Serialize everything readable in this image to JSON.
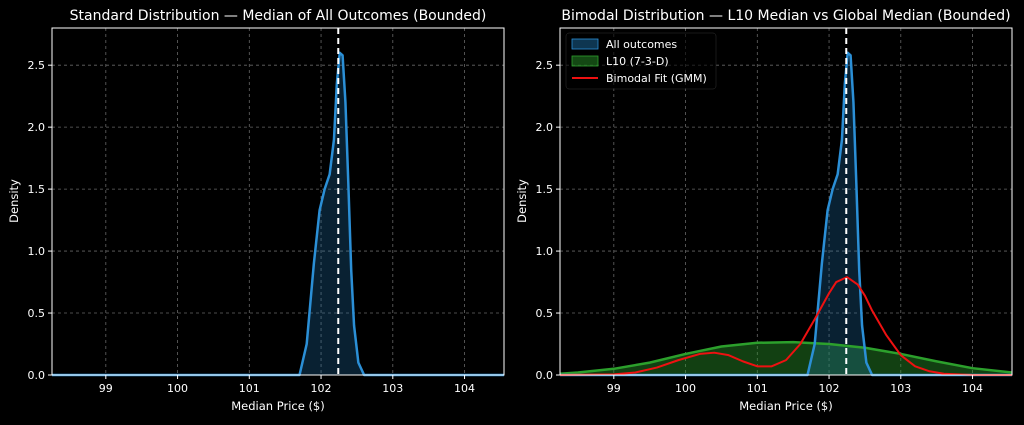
{
  "colors": {
    "background": "#000000",
    "text": "#ffffff",
    "grid": "#666666",
    "all_fill": "#1f77b4",
    "all_line": "#2b8fd6",
    "l10_fill": "#2ca02c",
    "l10_line": "#2ca02c",
    "gmm_line": "#ee1111",
    "median_line": "#ffffff"
  },
  "chart_data": [
    {
      "type": "area",
      "title": "Standard Distribution — Median of All Outcomes (Bounded)",
      "xlabel": "Median Price ($)",
      "ylabel": "Density",
      "xlim": [
        98.25,
        104.55
      ],
      "ylim": [
        0.0,
        2.8
      ],
      "xticks": [
        99,
        100,
        101,
        102,
        103,
        104
      ],
      "xtick_labels": [
        "99",
        "100",
        "101",
        "102",
        "103",
        "104"
      ],
      "yticks": [
        0.0,
        0.5,
        1.0,
        1.5,
        2.0,
        2.5
      ],
      "ytick_labels": [
        "0.0",
        "0.5",
        "1.0",
        "1.5",
        "2.0",
        "2.5"
      ],
      "grid": true,
      "median_line": 102.24,
      "series": [
        {
          "name": "All outcomes",
          "x": [
            98.25,
            101.7,
            101.8,
            101.9,
            101.98,
            102.05,
            102.12,
            102.18,
            102.22,
            102.26,
            102.3,
            102.34,
            102.38,
            102.42,
            102.46,
            102.52,
            102.6,
            104.55
          ],
          "y": [
            0.0,
            0.0,
            0.25,
            0.9,
            1.33,
            1.5,
            1.62,
            1.9,
            2.35,
            2.6,
            2.58,
            2.2,
            1.55,
            0.85,
            0.4,
            0.1,
            0.0,
            0.0
          ]
        }
      ]
    },
    {
      "type": "area",
      "title": "Bimodal Distribution — L10 Median vs Global Median (Bounded)",
      "xlabel": "Median Price ($)",
      "ylabel": "Density",
      "xlim": [
        98.25,
        104.55
      ],
      "ylim": [
        0.0,
        2.8
      ],
      "xticks": [
        99,
        100,
        101,
        102,
        103,
        104
      ],
      "xtick_labels": [
        "99",
        "100",
        "101",
        "102",
        "103",
        "104"
      ],
      "yticks": [
        0.0,
        0.5,
        1.0,
        1.5,
        2.0,
        2.5
      ],
      "ytick_labels": [
        "0.0",
        "0.5",
        "1.0",
        "1.5",
        "2.0",
        "2.5"
      ],
      "grid": true,
      "median_line": 102.24,
      "legend": "top-left",
      "series": [
        {
          "name": "All outcomes",
          "x": [
            98.25,
            101.7,
            101.8,
            101.9,
            101.98,
            102.05,
            102.12,
            102.18,
            102.22,
            102.26,
            102.3,
            102.34,
            102.38,
            102.42,
            102.46,
            102.52,
            102.6,
            104.55
          ],
          "y": [
            0.0,
            0.0,
            0.25,
            0.9,
            1.33,
            1.5,
            1.62,
            1.9,
            2.35,
            2.6,
            2.58,
            2.2,
            1.55,
            0.85,
            0.4,
            0.1,
            0.0,
            0.0
          ]
        },
        {
          "name": "L10 (7-3-D)",
          "x": [
            98.25,
            98.5,
            99.0,
            99.5,
            100.0,
            100.5,
            101.0,
            101.5,
            102.0,
            102.5,
            103.0,
            103.5,
            104.0,
            104.55
          ],
          "y": [
            0.01,
            0.02,
            0.05,
            0.1,
            0.17,
            0.23,
            0.26,
            0.265,
            0.25,
            0.22,
            0.17,
            0.11,
            0.055,
            0.02
          ]
        },
        {
          "name": "Bimodal Fit (GMM)",
          "x": [
            98.25,
            99.0,
            99.3,
            99.6,
            99.9,
            100.2,
            100.4,
            100.6,
            100.8,
            101.0,
            101.2,
            101.4,
            101.6,
            101.8,
            102.0,
            102.1,
            102.25,
            102.4,
            102.5,
            102.6,
            102.8,
            103.0,
            103.2,
            103.4,
            103.6,
            104.0,
            104.55
          ],
          "y": [
            0.0,
            0.005,
            0.02,
            0.06,
            0.12,
            0.17,
            0.18,
            0.16,
            0.11,
            0.07,
            0.07,
            0.12,
            0.25,
            0.45,
            0.66,
            0.75,
            0.79,
            0.73,
            0.64,
            0.52,
            0.32,
            0.16,
            0.07,
            0.03,
            0.01,
            0.0,
            0.0
          ]
        }
      ]
    }
  ]
}
